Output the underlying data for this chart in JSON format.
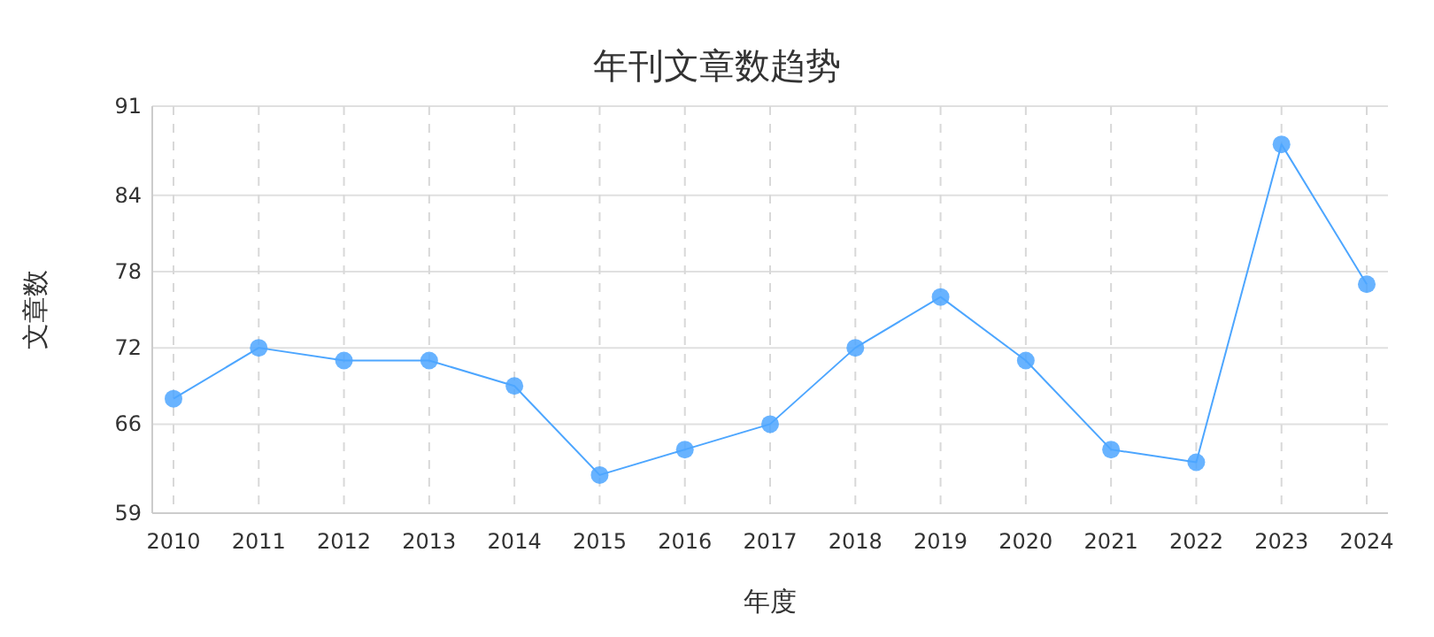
{
  "chart_data": {
    "type": "line",
    "title": "年刊文章数趋势",
    "xlabel": "年度",
    "ylabel": "文章数",
    "categories": [
      "2010",
      "2011",
      "2012",
      "2013",
      "2014",
      "2015",
      "2016",
      "2017",
      "2018",
      "2019",
      "2020",
      "2021",
      "2022",
      "2023",
      "2024"
    ],
    "series": [
      {
        "color": "#4da6ff",
        "values": [
          68,
          72,
          71,
          71,
          69,
          62,
          64,
          66,
          72,
          76,
          71,
          64,
          63,
          88,
          77
        ]
      }
    ],
    "ylim": [
      59,
      91
    ],
    "yticks": [
      59,
      66,
      72,
      78,
      84,
      91
    ],
    "grid": true,
    "marker": "circle",
    "line_style": "solid"
  }
}
